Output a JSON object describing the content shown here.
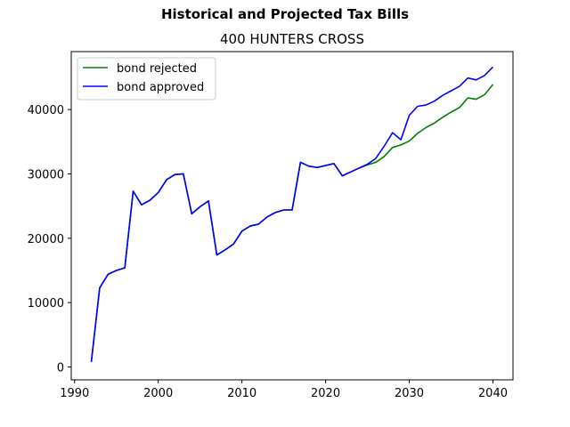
{
  "chart_data": {
    "type": "line",
    "title": "Historical and Projected Tax Bills",
    "subtitle": "400 HUNTERS CROSS",
    "xlabel": "",
    "ylabel": "",
    "xlim": [
      1989.6,
      2042.4
    ],
    "ylim": [
      -2000,
      49000
    ],
    "xticks": [
      1990,
      2000,
      2010,
      2020,
      2030,
      2040
    ],
    "yticks": [
      0,
      10000,
      20000,
      30000,
      40000
    ],
    "grid": false,
    "legend_position": "top-left",
    "x": [
      1992,
      1993,
      1994,
      1995,
      1996,
      1997,
      1998,
      1999,
      2000,
      2001,
      2002,
      2003,
      2004,
      2005,
      2006,
      2007,
      2008,
      2009,
      2010,
      2011,
      2012,
      2013,
      2014,
      2015,
      2016,
      2017,
      2018,
      2019,
      2020,
      2021,
      2022,
      2023,
      2024,
      2025,
      2026,
      2027,
      2028,
      2029,
      2030,
      2031,
      2032,
      2033,
      2034,
      2035,
      2036,
      2037,
      2038,
      2039,
      2040
    ],
    "series": [
      {
        "name": "bond rejected",
        "color": "#008000",
        "values": [
          800,
          12300,
          14400,
          15000,
          15400,
          27300,
          25200,
          25900,
          27100,
          29100,
          29900,
          30000,
          23800,
          24900,
          25800,
          17400,
          18200,
          19100,
          21100,
          21900,
          22200,
          23300,
          24000,
          24400,
          24400,
          31800,
          31200,
          31000,
          31300,
          31600,
          29700,
          30300,
          30900,
          31400,
          31800,
          32700,
          34100,
          34500,
          35100,
          36300,
          37200,
          37900,
          38800,
          39600,
          40300,
          41800,
          41600,
          42300,
          43900
        ]
      },
      {
        "name": "bond approved",
        "color": "#0000ff",
        "values": [
          800,
          12300,
          14400,
          15000,
          15400,
          27300,
          25200,
          25900,
          27100,
          29100,
          29900,
          30000,
          23800,
          24900,
          25800,
          17400,
          18200,
          19100,
          21100,
          21900,
          22200,
          23300,
          24000,
          24400,
          24400,
          31800,
          31200,
          31000,
          31300,
          31600,
          29700,
          30300,
          30900,
          31500,
          32400,
          34300,
          36400,
          35300,
          39100,
          40500,
          40700,
          41300,
          42200,
          42900,
          43600,
          44900,
          44600,
          45300,
          46600
        ]
      }
    ]
  }
}
